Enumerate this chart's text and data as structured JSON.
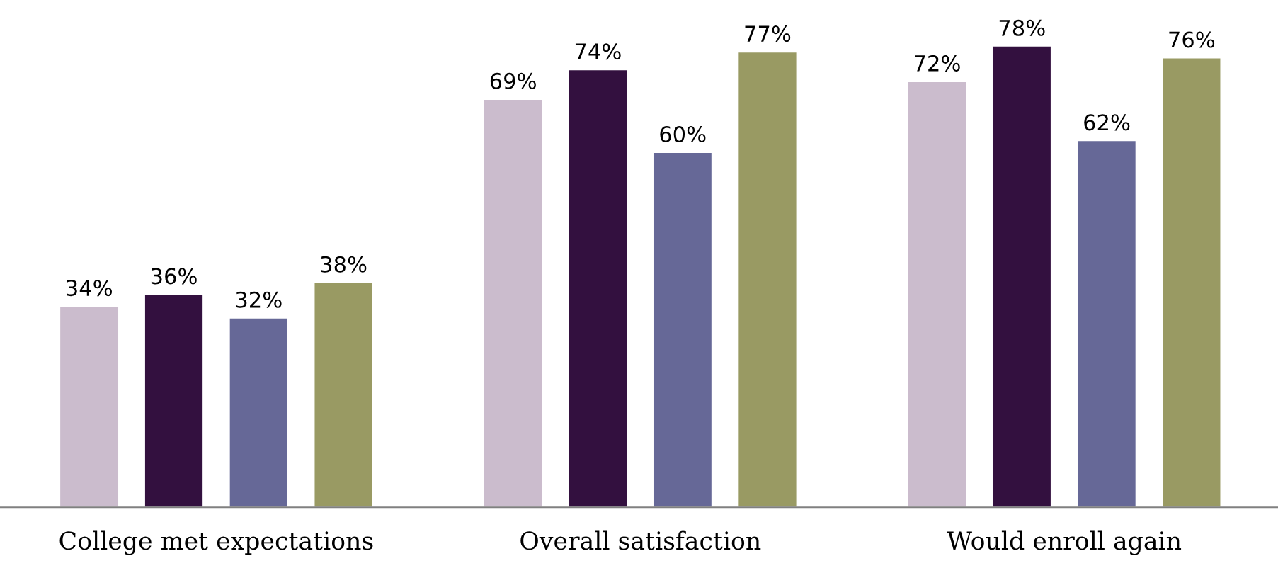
{
  "chart_data": {
    "type": "bar",
    "categories": [
      "College met expectations",
      "Overall satisfaction",
      "Would enroll again"
    ],
    "series": [
      {
        "color": "#cbbccd",
        "values": [
          34,
          69,
          72
        ],
        "value_labels": [
          "34%",
          "69%",
          "72%"
        ]
      },
      {
        "color": "#33103f",
        "values": [
          36,
          74,
          78
        ],
        "value_labels": [
          "36%",
          "74%",
          "78%"
        ]
      },
      {
        "color": "#666897",
        "values": [
          32,
          60,
          62
        ],
        "value_labels": [
          "32%",
          "60%",
          "62%"
        ]
      },
      {
        "color": "#999a63",
        "values": [
          38,
          77,
          76
        ],
        "value_labels": [
          "38%",
          "77%",
          "76%"
        ]
      }
    ],
    "tick_labels": "x",
    "grid": false,
    "legend": false
  }
}
